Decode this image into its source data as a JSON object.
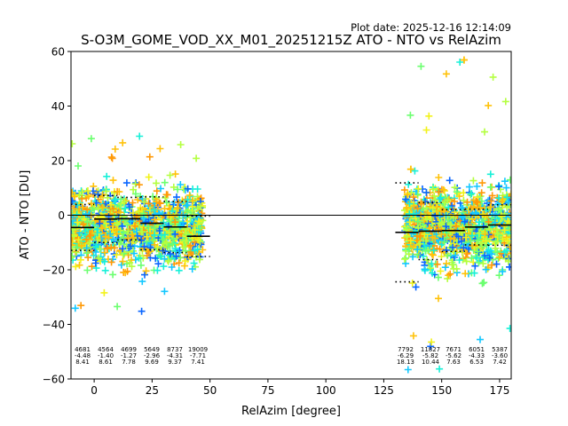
{
  "plot_date": "Plot date: 2025-12-16 12:14:09",
  "chart_data": {
    "type": "scatter",
    "title": "S-O3M_GOME_VOD_XX_M01_20251215Z ATO - NTO vs RelAzim",
    "xlabel": "RelAzim [degree]",
    "ylabel": "ATO - NTO [DU]",
    "xlim": [
      -10,
      180
    ],
    "ylim": [
      -60,
      60
    ],
    "xticks": [
      0,
      25,
      50,
      75,
      100,
      125,
      150,
      175
    ],
    "yticks": [
      -60,
      -40,
      -20,
      0,
      20,
      40,
      60
    ],
    "zero_line": 0,
    "scatter_colors": [
      "#0a66ff",
      "#14c8ff",
      "#18f0d8",
      "#6cff70",
      "#b4ff40",
      "#f2f21a",
      "#ffc20a",
      "#ff9a08"
    ],
    "point_clusters": [
      {
        "x_range": [
          -10,
          47
        ],
        "y_center": -4,
        "y_spread": 17,
        "y_min": -36,
        "y_max": 30
      },
      {
        "x_range": [
          134,
          180
        ],
        "y_center": -4,
        "y_spread": 18,
        "y_min": -60,
        "y_max": 58
      }
    ],
    "bins": [
      {
        "x0": -10,
        "x1": 0,
        "count": "4681",
        "mean": -4.48,
        "std": 8.41,
        "mean_label": "-4.48",
        "std_label": "8.41"
      },
      {
        "x0": 0,
        "x1": 10,
        "count": "4564",
        "mean": -1.4,
        "std": 8.61,
        "mean_label": "-1.40",
        "std_label": "8.61"
      },
      {
        "x0": 10,
        "x1": 20,
        "count": "4699",
        "mean": -1.27,
        "std": 7.78,
        "mean_label": "-1.27",
        "std_label": "7.78"
      },
      {
        "x0": 20,
        "x1": 30,
        "count": "5649",
        "mean": -2.96,
        "std": 9.69,
        "mean_label": "-2.96",
        "std_label": "9.69"
      },
      {
        "x0": 30,
        "x1": 40,
        "count": "8737",
        "mean": -4.31,
        "std": 9.37,
        "mean_label": "-4.31",
        "std_label": "9.37"
      },
      {
        "x0": 40,
        "x1": 50,
        "count": "19009",
        "mean": -7.71,
        "std": 7.41,
        "mean_label": "-7.71",
        "std_label": "7.41"
      },
      {
        "x0": 130,
        "x1": 140,
        "count": "7792",
        "mean": -6.29,
        "std": 18.13,
        "mean_label": "-6.29",
        "std_label": "18.13"
      },
      {
        "x0": 140,
        "x1": 150,
        "count": "11827",
        "mean": -5.82,
        "std": 10.44,
        "mean_label": "-5.82",
        "std_label": "10.44"
      },
      {
        "x0": 150,
        "x1": 160,
        "count": "7671",
        "mean": -5.62,
        "std": 7.63,
        "mean_label": "-5.62",
        "std_label": "7.63"
      },
      {
        "x0": 160,
        "x1": 170,
        "count": "6051",
        "mean": -4.33,
        "std": 6.53,
        "mean_label": "-4.33",
        "std_label": "6.53"
      },
      {
        "x0": 170,
        "x1": 180,
        "count": "5387",
        "mean": -3.6,
        "std": 7.42,
        "mean_label": "-3.60",
        "std_label": "7.42"
      }
    ]
  }
}
